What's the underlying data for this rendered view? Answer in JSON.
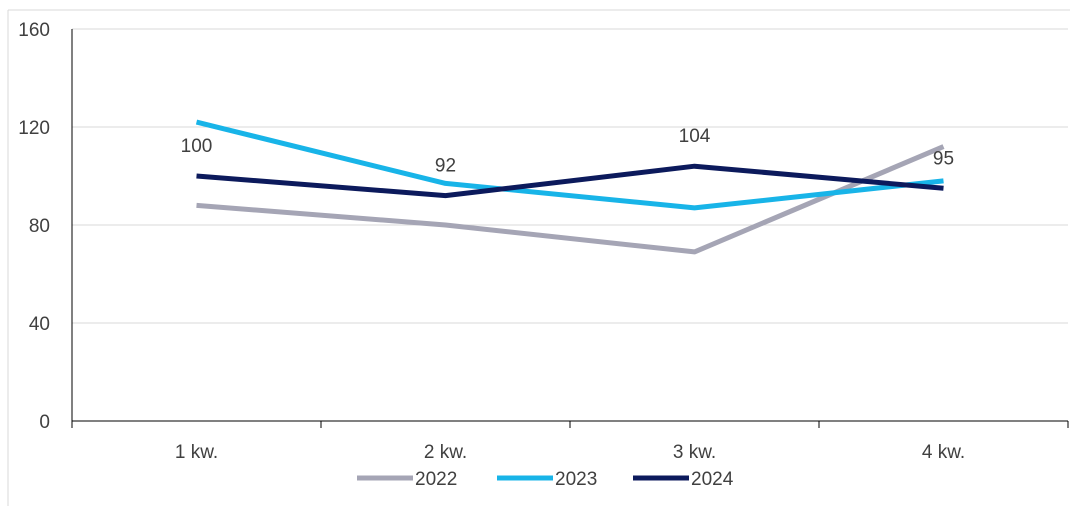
{
  "chart_data": {
    "type": "line",
    "title": "",
    "xlabel": "",
    "ylabel": "",
    "categories": [
      "1 kw.",
      "2 kw.",
      "3 kw.",
      "4 kw."
    ],
    "ylim": [
      0,
      160
    ],
    "yticks": [
      "0",
      "40",
      "80",
      "120",
      "160"
    ],
    "grid": true,
    "legend_position": "bottom",
    "series": [
      {
        "name": "2022",
        "color": "#a5a5b5",
        "values": [
          88,
          80,
          69,
          112
        ]
      },
      {
        "name": "2023",
        "color": "#18b4e8",
        "values": [
          122,
          97,
          87,
          98
        ]
      },
      {
        "name": "2024",
        "color": "#0c1a5c",
        "values": [
          100,
          92,
          104,
          95
        ]
      }
    ],
    "data_labels": {
      "series": "2024",
      "items": [
        {
          "category": "1 kw.",
          "text": "100"
        },
        {
          "category": "2 kw.",
          "text": "92"
        },
        {
          "category": "3 kw.",
          "text": "104"
        },
        {
          "category": "4 kw.",
          "text": "95"
        }
      ]
    }
  }
}
